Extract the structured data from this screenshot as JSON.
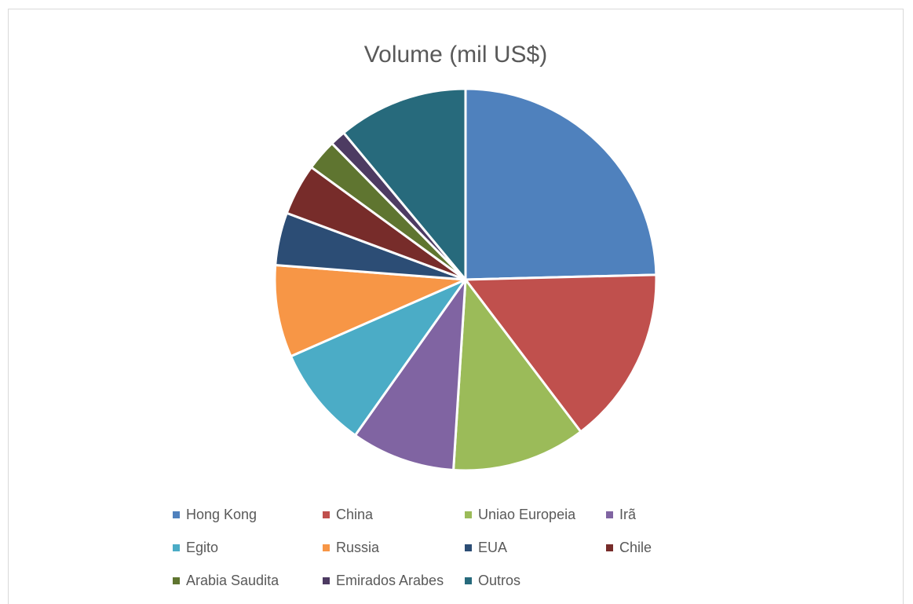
{
  "chart_data": {
    "type": "pie",
    "title": "Volume (mil US$)",
    "legend_position": "bottom",
    "slice_border_color": "#ffffff",
    "categories": [
      "Hong Kong",
      "China",
      "Uniao Europeia",
      "Irã",
      "Egito",
      "Russia",
      "EUA",
      "Chile",
      "Arabia Saudita",
      "Emirados Arabes",
      "Outros"
    ],
    "values": [
      24.3,
      14.9,
      11.2,
      8.7,
      8.5,
      7.7,
      4.4,
      4.3,
      2.6,
      1.3,
      10.9
    ],
    "colors": [
      "#4f81bd",
      "#c0504d",
      "#9bbb59",
      "#8064a2",
      "#4bacc6",
      "#f79646",
      "#2c4d75",
      "#772c2a",
      "#5f7530",
      "#4d3b62",
      "#276a7c"
    ]
  }
}
